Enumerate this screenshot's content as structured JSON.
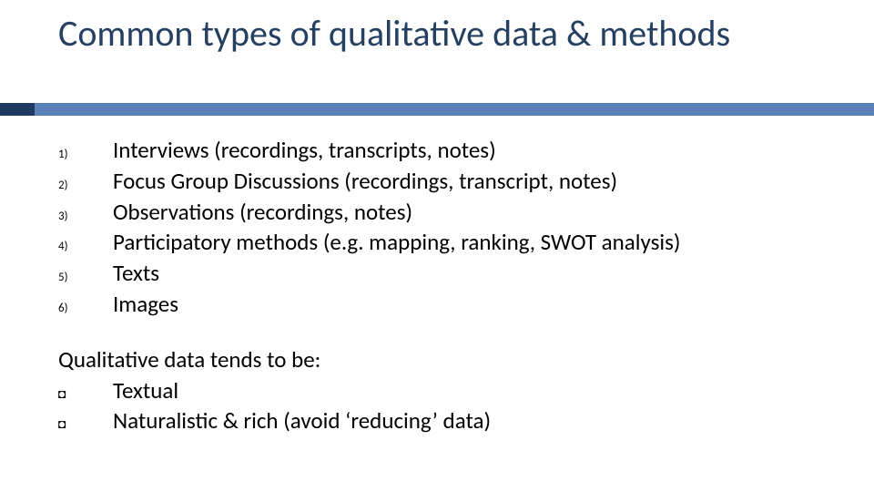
{
  "colors": {
    "title_color": "#254061",
    "accent_bar": "#5a80b6",
    "accent_bar_dark": "#203b62",
    "body_text": "#000000",
    "background": "#ffffff"
  },
  "typography": {
    "title_fontsize": 40,
    "body_fontsize": 25,
    "marker_fontsize": 13
  },
  "title": "Common types of qualitative data & methods",
  "numbered_list": {
    "items": [
      {
        "marker": "1)",
        "text": "Interviews (recordings, transcripts, notes)"
      },
      {
        "marker": "2)",
        "text": "Focus Group Discussions (recordings, transcript, notes)"
      },
      {
        "marker": "3)",
        "text": "Observations (recordings, notes)"
      },
      {
        "marker": "4)",
        "text": "Participatory methods (e.g. mapping, ranking, SWOT analysis)"
      },
      {
        "marker": "5)",
        "text": "Texts"
      },
      {
        "marker": "6)",
        "text": "Images"
      }
    ]
  },
  "sub_heading": "Qualitative data tends to be:",
  "bullet_list": {
    "marker_glyph": "◘",
    "items": [
      {
        "text": "Textual"
      },
      {
        "text": "Naturalistic & rich (avoid ‘reducing’ data)"
      }
    ]
  }
}
